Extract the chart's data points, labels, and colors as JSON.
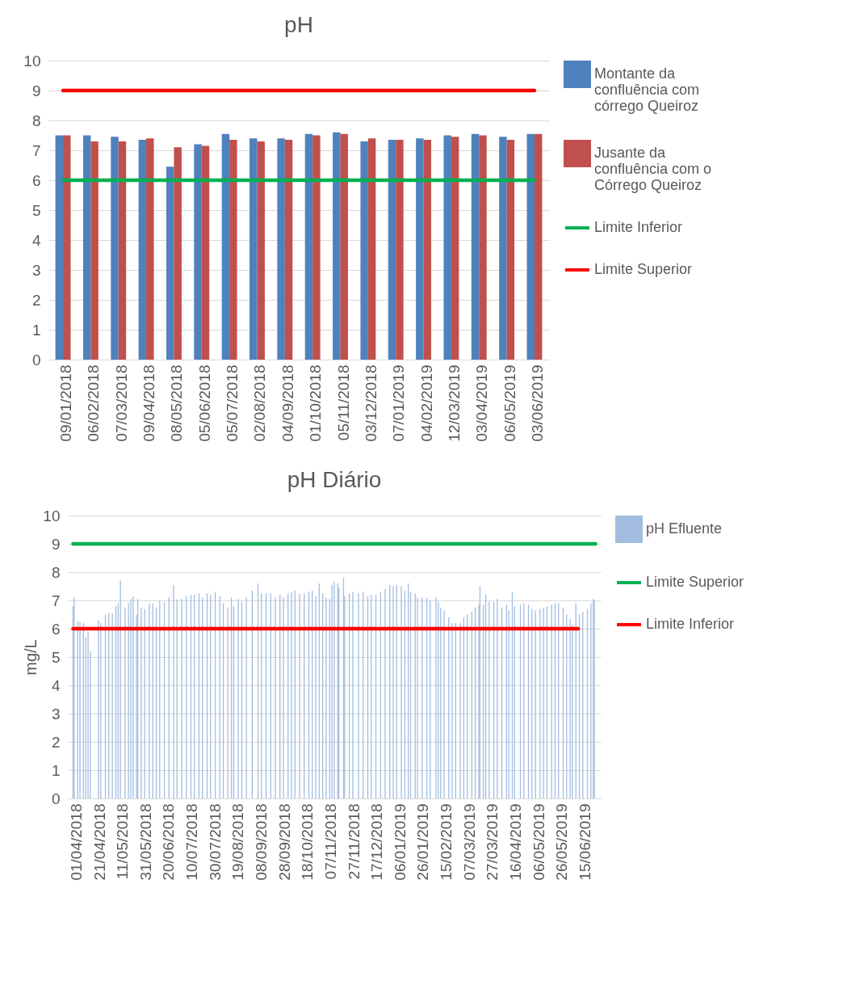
{
  "chart_data": [
    {
      "type": "bar",
      "title": "pH",
      "categories": [
        "09/01/2018",
        "06/02/2018",
        "07/03/2018",
        "09/04/2018",
        "08/05/2018",
        "05/06/2018",
        "05/07/2018",
        "02/08/2018",
        "04/09/2018",
        "01/10/2018",
        "05/11/2018",
        "03/12/2018",
        "07/01/2019",
        "04/02/2019",
        "12/03/2019",
        "03/04/2019",
        "06/05/2019",
        "03/06/2019"
      ],
      "series": [
        {
          "name": "Montante da confluência com córrego Queiroz",
          "color": "#4f81bd",
          "values": [
            7.5,
            7.5,
            7.45,
            7.35,
            6.45,
            7.2,
            7.55,
            7.4,
            7.4,
            7.55,
            7.6,
            7.3,
            7.35,
            7.4,
            7.5,
            7.55,
            7.45,
            7.55
          ]
        },
        {
          "name": "Jusante da confluência com o Córrego Queiroz",
          "color": "#c0504d",
          "values": [
            7.5,
            7.3,
            7.3,
            7.4,
            7.1,
            7.15,
            7.35,
            7.3,
            7.35,
            7.5,
            7.55,
            7.4,
            7.35,
            7.35,
            7.45,
            7.5,
            7.35,
            7.55
          ]
        },
        {
          "name": "Limite Inferior",
          "type": "line",
          "color": "#00b050",
          "values": [
            6,
            6,
            6,
            6,
            6,
            6,
            6,
            6,
            6,
            6,
            6,
            6,
            6,
            6,
            6,
            6,
            6,
            6
          ]
        },
        {
          "name": "Limite Superior",
          "type": "line",
          "color": "#ff0000",
          "values": [
            9,
            9,
            9,
            9,
            9,
            9,
            9,
            9,
            9,
            9,
            9,
            9,
            9,
            9,
            9,
            9,
            9,
            9
          ]
        }
      ],
      "ylim": [
        0,
        10
      ],
      "yticks": [
        0,
        1,
        2,
        3,
        4,
        5,
        6,
        7,
        8,
        9,
        10
      ],
      "grid": "y",
      "legend": "right",
      "marker": "none",
      "line_style": "solid"
    },
    {
      "type": "bar",
      "title": "pH Diário",
      "ylabel": "mg/L",
      "series": [
        {
          "name": "pH Efluente",
          "color": "#a3bde0",
          "x": [
            "2018-04-01",
            "2018-04-02",
            "2018-04-05",
            "2018-04-07",
            "2018-04-10",
            "2018-04-12",
            "2018-04-14",
            "2018-04-16",
            "2018-04-18",
            "2018-04-23",
            "2018-04-25",
            "2018-04-29",
            "2018-05-02",
            "2018-05-05",
            "2018-05-08",
            "2018-05-10",
            "2018-05-12",
            "2018-05-16",
            "2018-05-19",
            "2018-05-21",
            "2018-05-23",
            "2018-05-26",
            "2018-05-27",
            "2018-05-30",
            "2018-06-02",
            "2018-06-06",
            "2018-06-09",
            "2018-06-12",
            "2018-06-15",
            "2018-06-19",
            "2018-06-23",
            "2018-06-27",
            "2018-06-30",
            "2018-07-04",
            "2018-07-08",
            "2018-07-12",
            "2018-07-15",
            "2018-07-19",
            "2018-07-22",
            "2018-07-26",
            "2018-07-29",
            "2018-08-02",
            "2018-08-06",
            "2018-08-09",
            "2018-08-13",
            "2018-08-16",
            "2018-08-18",
            "2018-08-22",
            "2018-08-25",
            "2018-08-29",
            "2018-09-03",
            "2018-09-08",
            "2018-09-11",
            "2018-09-15",
            "2018-09-19",
            "2018-09-23",
            "2018-09-27",
            "2018-09-30",
            "2018-10-04",
            "2018-10-07",
            "2018-10-10",
            "2018-10-14",
            "2018-10-18",
            "2018-10-22",
            "2018-10-25",
            "2018-10-28",
            "2018-10-31",
            "2018-11-03",
            "2018-11-06",
            "2018-11-09",
            "2018-11-11",
            "2018-11-13",
            "2018-11-16",
            "2018-11-17",
            "2018-11-21",
            "2018-11-22",
            "2018-11-26",
            "2018-11-29",
            "2018-12-04",
            "2018-12-08",
            "2018-12-12",
            "2018-12-15",
            "2018-12-19",
            "2018-12-23",
            "2018-12-27",
            "2018-12-31",
            "2019-01-03",
            "2019-01-06",
            "2019-01-10",
            "2019-01-13",
            "2019-01-16",
            "2019-01-18",
            "2019-01-22",
            "2019-01-24",
            "2019-01-26",
            "2019-01-28",
            "2019-02-01",
            "2019-02-04",
            "2019-02-09",
            "2019-02-11",
            "2019-02-13",
            "2019-02-16",
            "2019-02-20",
            "2019-02-23",
            "2019-02-26",
            "2019-03-02",
            "2019-03-05",
            "2019-03-08",
            "2019-03-12",
            "2019-03-15",
            "2019-03-18",
            "2019-03-19",
            "2019-03-22",
            "2019-03-24",
            "2019-03-27",
            "2019-03-31",
            "2019-04-03",
            "2019-04-07",
            "2019-04-11",
            "2019-04-13",
            "2019-04-16",
            "2019-04-18",
            "2019-04-23",
            "2019-04-26",
            "2019-04-30",
            "2019-05-03",
            "2019-05-06",
            "2019-05-10",
            "2019-05-13",
            "2019-05-16",
            "2019-05-20",
            "2019-05-23",
            "2019-05-26",
            "2019-05-30",
            "2019-06-02",
            "2019-06-05",
            "2019-06-07",
            "2019-06-10",
            "2019-06-13",
            "2019-06-16",
            "2019-06-20",
            "2019-06-23",
            "2019-06-25",
            "2019-06-26"
          ],
          "values": [
            6.8,
            7.1,
            6.25,
            6.25,
            6.2,
            5.7,
            5.9,
            5.2,
            null,
            6.3,
            6.2,
            6.5,
            6.55,
            6.55,
            6.8,
            6.9,
            7.7,
            6.75,
            6.9,
            7.05,
            7.15,
            6.5,
            7.05,
            6.75,
            6.7,
            6.9,
            6.9,
            6.75,
            7.0,
            6.95,
            7.1,
            7.55,
            7.05,
            7.05,
            7.15,
            7.2,
            7.2,
            7.25,
            7.1,
            7.25,
            7.2,
            7.3,
            7.15,
            6.9,
            6.75,
            7.1,
            6.8,
            7.05,
            6.95,
            7.1,
            7.35,
            7.6,
            7.25,
            7.25,
            7.25,
            7.1,
            7.2,
            7.1,
            7.25,
            7.3,
            7.35,
            7.25,
            7.25,
            7.3,
            7.35,
            7.15,
            7.6,
            7.25,
            7.1,
            7.05,
            7.55,
            7.65,
            7.6,
            7.45,
            7.8,
            7.15,
            7.25,
            7.3,
            7.25,
            7.3,
            7.15,
            7.2,
            7.2,
            7.3,
            7.4,
            7.55,
            7.5,
            7.55,
            7.5,
            7.35,
            7.6,
            7.3,
            7.25,
            7.1,
            null,
            7.1,
            7.1,
            7.0,
            7.1,
            6.95,
            6.75,
            6.65,
            6.4,
            6.2,
            6.2,
            6.2,
            6.4,
            6.5,
            6.6,
            6.75,
            6.85,
            7.5,
            6.85,
            7.2,
            6.95,
            6.95,
            7.05,
            6.75,
            6.85,
            6.65,
            7.3,
            6.8,
            6.85,
            6.9,
            6.85,
            6.7,
            6.65,
            6.7,
            6.75,
            6.8,
            6.85,
            6.9,
            6.9,
            6.75,
            6.5,
            6.35,
            6.15,
            6.9,
            6.5,
            6.6,
            6.7,
            6.9,
            7.05,
            7.0
          ]
        },
        {
          "name": "Limite Superior",
          "type": "line",
          "color": "#00b050",
          "x": [
            "2018-04-01",
            "2019-06-27"
          ],
          "values": [
            9,
            9
          ]
        },
        {
          "name": "Limite Inferior",
          "type": "line",
          "color": "#ff0000",
          "x": [
            "2018-04-01",
            "2019-06-12"
          ],
          "values": [
            6,
            6
          ]
        }
      ],
      "xlim": [
        "2018-03-31",
        "2019-06-28"
      ],
      "xticks": [
        {
          "value": "2018-04-01",
          "label": "01/04/2018"
        },
        {
          "value": "2018-04-21",
          "label": "21/04/2018"
        },
        {
          "value": "2018-05-11",
          "label": "11/05/2018"
        },
        {
          "value": "2018-05-31",
          "label": "31/05/2018"
        },
        {
          "value": "2018-06-20",
          "label": "20/06/2018"
        },
        {
          "value": "2018-07-10",
          "label": "10/07/2018"
        },
        {
          "value": "2018-07-30",
          "label": "30/07/2018"
        },
        {
          "value": "2018-08-19",
          "label": "19/08/2018"
        },
        {
          "value": "2018-09-08",
          "label": "08/09/2018"
        },
        {
          "value": "2018-09-28",
          "label": "28/09/2018"
        },
        {
          "value": "2018-10-18",
          "label": "18/10/2018"
        },
        {
          "value": "2018-11-07",
          "label": "07/11/2018"
        },
        {
          "value": "2018-11-27",
          "label": "27/11/2018"
        },
        {
          "value": "2018-12-17",
          "label": "17/12/2018"
        },
        {
          "value": "2019-01-06",
          "label": "06/01/2019"
        },
        {
          "value": "2019-01-26",
          "label": "26/01/2019"
        },
        {
          "value": "2019-02-15",
          "label": "15/02/2019"
        },
        {
          "value": "2019-03-07",
          "label": "07/03/2019"
        },
        {
          "value": "2019-03-27",
          "label": "27/03/2019"
        },
        {
          "value": "2019-04-16",
          "label": "16/04/2019"
        },
        {
          "value": "2019-05-06",
          "label": "06/05/2019"
        },
        {
          "value": "2019-05-26",
          "label": "26/05/2019"
        },
        {
          "value": "2019-06-15",
          "label": "15/06/2019"
        }
      ],
      "ylim": [
        0,
        10
      ],
      "yticks": [
        0,
        1,
        2,
        3,
        4,
        5,
        6,
        7,
        8,
        9,
        10
      ],
      "grid": "y",
      "legend": "right",
      "marker": "none",
      "line_style": "solid"
    }
  ]
}
